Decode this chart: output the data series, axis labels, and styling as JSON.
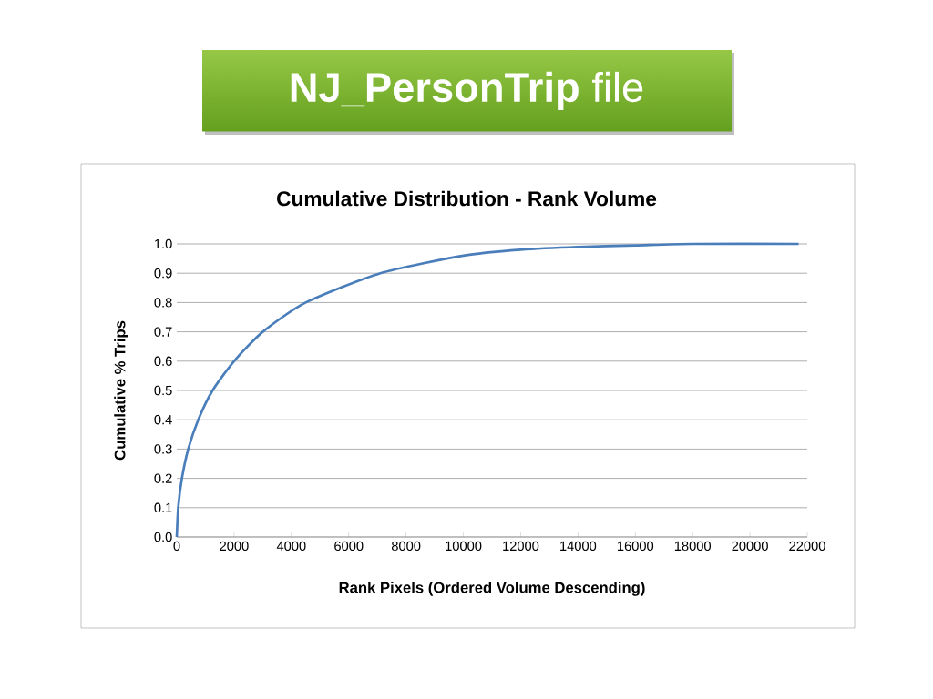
{
  "chart_data": {
    "type": "line",
    "title": "**NJ_PersonTrip** file",
    "subtitle": "Cumulative Distribution - Rank Volume",
    "xlabel": "Rank Pixels (Ordered Volume Descending)",
    "ylabel": "Cumulative % Trips",
    "x": [
      0,
      50,
      180,
      400,
      750,
      1250,
      2000,
      3000,
      4500,
      7100,
      10000,
      12000,
      14000,
      16000,
      18000,
      21700
    ],
    "series": [
      {
        "color": "#4a7ebb",
        "values": [
          0,
          0.1,
          0.2,
          0.3,
          0.4,
          0.5,
          0.6,
          0.7,
          0.8,
          0.9,
          0.96,
          0.98,
          0.99,
          0.995,
          1.0,
          1.0
        ]
      }
    ],
    "xlim": [
      0,
      22000
    ],
    "xticks": [
      0,
      2000,
      4000,
      6000,
      8000,
      10000,
      12000,
      14000,
      16000,
      18000,
      20000,
      22000
    ],
    "ylim": [
      0,
      1.0
    ],
    "yticks": [
      {
        "value": 0,
        "label": "0.0"
      },
      {
        "value": 0.1,
        "label": "0.1"
      },
      {
        "value": 0.2,
        "label": "0.2"
      },
      {
        "value": 0.3,
        "label": "0.3"
      },
      {
        "value": 0.4,
        "label": "0.4"
      },
      {
        "value": 0.5,
        "label": "0.5"
      },
      {
        "value": 0.6,
        "label": "0.6"
      },
      {
        "value": 0.7,
        "label": "0.7"
      },
      {
        "value": 0.8,
        "label": "0.8"
      },
      {
        "value": 0.9,
        "label": "0.9"
      },
      {
        "value": 1.0,
        "label": "1.0"
      }
    ],
    "grid": "y",
    "marker": "none",
    "line_style": "solid"
  }
}
